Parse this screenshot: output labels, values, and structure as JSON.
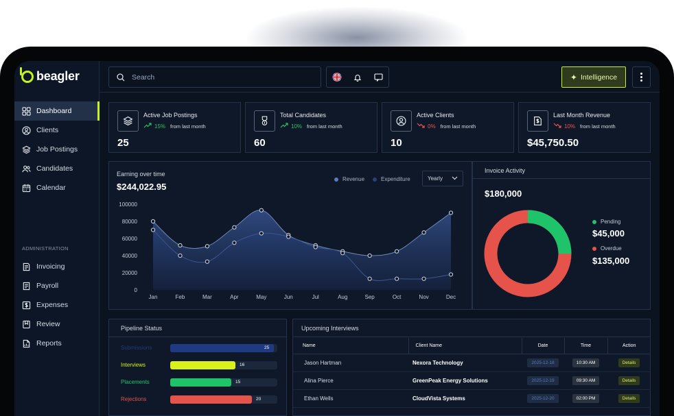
{
  "app": {
    "name": "beagler"
  },
  "sidebar": {
    "items": [
      {
        "label": "Dashboard",
        "icon": "grid-icon",
        "active": true
      },
      {
        "label": "Clients",
        "icon": "user-circle-icon"
      },
      {
        "label": "Job Postings",
        "icon": "layers-icon"
      },
      {
        "label": "Candidates",
        "icon": "users-icon"
      },
      {
        "label": "Calendar",
        "icon": "calendar-icon"
      }
    ],
    "admin_label": "ADMINISTRATION",
    "admin_items": [
      {
        "label": "Invoicing",
        "icon": "invoice-icon"
      },
      {
        "label": "Payroll",
        "icon": "payroll-icon"
      },
      {
        "label": "Expenses",
        "icon": "dollar-doc-icon"
      },
      {
        "label": "Review",
        "icon": "bookmark-icon"
      },
      {
        "label": "Reports",
        "icon": "report-icon"
      }
    ]
  },
  "topbar": {
    "search_placeholder": "Search",
    "intelligence_label": "Intelligence",
    "icons": [
      "uk-flag-icon",
      "bell-icon",
      "chat-icon",
      "more-vertical-icon"
    ]
  },
  "stats": [
    {
      "title": "Active Job Postings",
      "change": "15%",
      "direction": "up",
      "from": "from last month",
      "value": "25",
      "icon": "layers-icon"
    },
    {
      "title": "Total Candidates",
      "change": "10%",
      "direction": "up",
      "from": "from last month",
      "value": "60",
      "icon": "badge-icon"
    },
    {
      "title": "Active Clients",
      "change": "0%",
      "direction": "down",
      "from": "from last month",
      "value": "10",
      "icon": "user-circle-icon"
    },
    {
      "title": "Last Month Revenue",
      "change": "10%",
      "direction": "down",
      "from": "from last month",
      "value": "$45,750.50",
      "icon": "dollar-doc-icon"
    }
  ],
  "earnings": {
    "title": "Earning over time",
    "total": "$244,022.95",
    "period": "Yearly",
    "colors": {
      "revenue": "#5a7bbf",
      "expenditure": "#2b3f7a"
    }
  },
  "chart_data": {
    "type": "area",
    "categories": [
      "Jan",
      "Feb",
      "Mar",
      "Apr",
      "May",
      "Jun",
      "Jul",
      "Aug",
      "Sep",
      "Oct",
      "Nov",
      "Dec"
    ],
    "yticks": [
      "100000",
      "80000",
      "60000",
      "40000",
      "20000",
      "0"
    ],
    "ylim": [
      0,
      100000
    ],
    "series": [
      {
        "name": "Revenue",
        "values": [
          80000,
          52000,
          51000,
          73000,
          93000,
          64000,
          52000,
          45000,
          40000,
          45000,
          67000,
          90000
        ]
      },
      {
        "name": "Expenditure",
        "values": [
          70000,
          40000,
          33000,
          55000,
          66000,
          62000,
          50000,
          43000,
          13000,
          13000,
          13000,
          18000
        ]
      }
    ]
  },
  "invoice": {
    "title": "Invoice Activity",
    "total": "$180,000",
    "pending_label": "Pending",
    "pending_value": "$45,000",
    "overdue_label": "Overdue",
    "overdue_value": "$135,000",
    "pending_share": 0.25,
    "colors": {
      "pending": "#1fc46a",
      "overdue": "#e5534b"
    }
  },
  "pipeline": {
    "title": "Pipeline Status",
    "max": 25,
    "items": [
      {
        "label": "Submissions",
        "value": 25,
        "display": "25",
        "color": "#1f3a80",
        "label_color": "#223a74"
      },
      {
        "label": "Interviews",
        "value": 16,
        "display": "16",
        "color": "#d8f11a",
        "label_color": "#d8f11a"
      },
      {
        "label": "Placements",
        "value": 15,
        "display": "15",
        "color": "#1fc46a",
        "label_color": "#1fc46a"
      },
      {
        "label": "Rejections",
        "value": 20,
        "display": "20",
        "color": "#e5534b",
        "label_color": "#e5534b"
      }
    ]
  },
  "interviews": {
    "title": "Upcoming Interviews",
    "headers": [
      "Name",
      "Client Name",
      "Date",
      "Time",
      "Action"
    ],
    "rows": [
      {
        "name": "Jason Hartman",
        "client": "Nexora Technology",
        "date": "2025-12-18",
        "time": "10:30 AM",
        "action": "Details"
      },
      {
        "name": "Alina Pierce",
        "client": "GreenPeak Energy Solutions",
        "date": "2025-12-19",
        "time": "09:30 AM",
        "action": "Details"
      },
      {
        "name": "Ethan Wells",
        "client": "CloudVista Systems",
        "date": "2025-12-20",
        "time": "02:00 PM",
        "action": "Details"
      }
    ]
  }
}
